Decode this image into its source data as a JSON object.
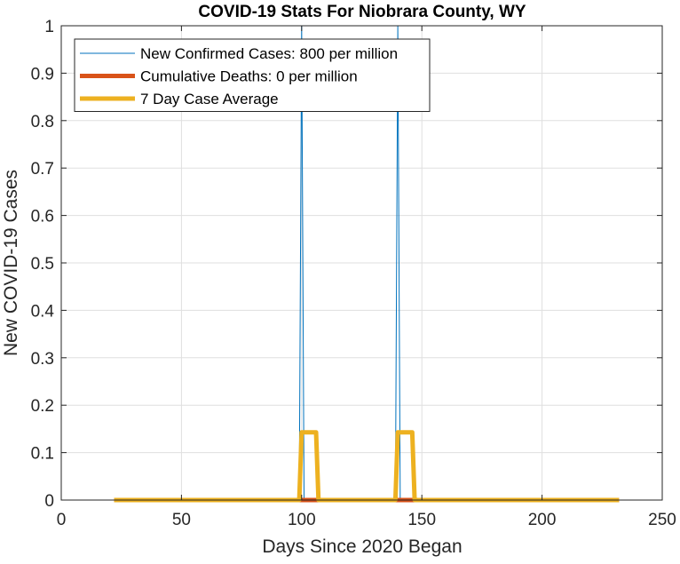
{
  "chart_data": {
    "type": "line",
    "title": "COVID-19 Stats For Niobrara County, WY",
    "xlabel": "Days Since 2020 Began",
    "ylabel": "New COVID-19 Cases",
    "xlim": [
      0,
      250
    ],
    "ylim": [
      0,
      1
    ],
    "xticks": [
      0,
      50,
      100,
      150,
      200,
      250
    ],
    "xtick_labels": [
      "0",
      "50",
      "100",
      "150",
      "200",
      "250"
    ],
    "yticks": [
      0,
      0.1,
      0.2,
      0.3,
      0.4,
      0.5,
      0.6,
      0.7,
      0.8,
      0.9,
      1
    ],
    "ytick_labels": [
      "0",
      "0.1",
      "0.2",
      "0.3",
      "0.4",
      "0.5",
      "0.6",
      "0.7",
      "0.8",
      "0.9",
      "1"
    ],
    "grid": true,
    "legend_position": "top-left",
    "series": [
      {
        "name": "New Confirmed Cases: 800 per million",
        "color": "#0072BD",
        "x": [
          22,
          99,
          100,
          101,
          139,
          140,
          141,
          232
        ],
        "y": [
          0,
          0,
          1,
          0,
          0,
          1,
          0,
          0
        ]
      },
      {
        "name": "Cumulative Deaths: 0 per million",
        "color": "#D95319",
        "x": [
          22,
          232
        ],
        "y": [
          0,
          0
        ]
      },
      {
        "name": "7 Day Case Average",
        "color": "#EDB120",
        "x": [
          22,
          99,
          100,
          106,
          107,
          139,
          140,
          146,
          147,
          232
        ],
        "y": [
          0,
          0,
          0.142857,
          0.142857,
          0,
          0,
          0.142857,
          0.142857,
          0,
          0
        ]
      }
    ]
  }
}
